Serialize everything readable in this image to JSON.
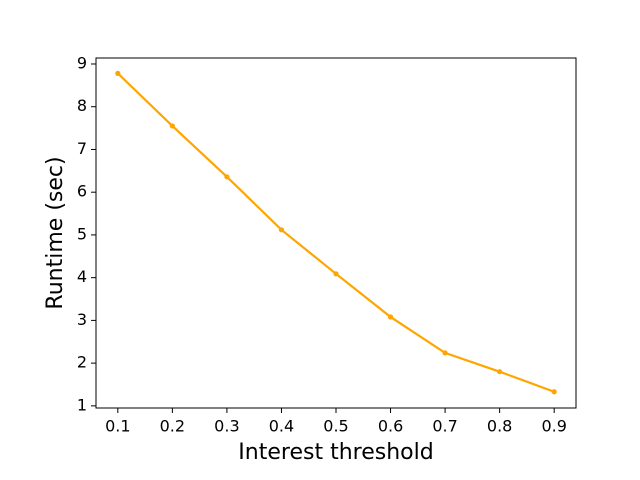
{
  "chart_data": {
    "type": "line",
    "x_label": "Interest threshold",
    "y_label": "Runtime (sec)",
    "x": [
      0.1,
      0.2,
      0.3,
      0.4,
      0.5,
      0.6,
      0.7,
      0.8,
      0.9
    ],
    "series": [
      {
        "color": "#ffa500",
        "values": [
          8.78,
          7.55,
          6.36,
          5.12,
          4.09,
          3.08,
          2.24,
          1.8,
          1.33
        ]
      }
    ],
    "xlim": [
      0.06,
      0.94
    ],
    "xticks": [
      0.1,
      0.2,
      0.3,
      0.4,
      0.5,
      0.6,
      0.7,
      0.8,
      0.9
    ],
    "ylim": [
      0.95,
      9.14
    ],
    "yticks": [
      1,
      2,
      3,
      4,
      5,
      6,
      7,
      8,
      9
    ],
    "grid": false
  }
}
